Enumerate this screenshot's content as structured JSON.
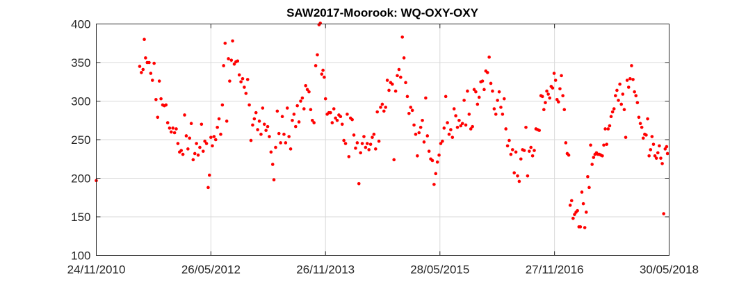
{
  "chart_data": {
    "type": "scatter",
    "title": "SAW2017-Moorook: WQ-OXY-OXY",
    "xlabel": "",
    "ylabel": "",
    "x_axis": {
      "type": "date",
      "min": "2010-11-24",
      "max": "2018-05-30",
      "ticks": [
        "24/11/2010",
        "26/05/2012",
        "26/11/2013",
        "28/05/2015",
        "27/11/2016",
        "30/05/2018"
      ]
    },
    "y_axis": {
      "min": 100,
      "max": 400,
      "ticks": [
        100,
        150,
        200,
        250,
        300,
        350,
        400
      ]
    },
    "grid": true,
    "marker_color": "#ff0000",
    "points": [
      [
        "2010-11-24",
        197
      ],
      [
        "2011-06-20",
        345
      ],
      [
        "2011-06-28",
        337
      ],
      [
        "2011-07-06",
        341
      ],
      [
        "2011-07-12",
        380
      ],
      [
        "2011-07-18",
        356
      ],
      [
        "2011-07-26",
        350
      ],
      [
        "2011-08-04",
        350
      ],
      [
        "2011-08-12",
        336
      ],
      [
        "2011-08-20",
        327
      ],
      [
        "2011-08-28",
        349
      ],
      [
        "2011-09-06",
        302
      ],
      [
        "2011-09-14",
        279
      ],
      [
        "2011-09-22",
        326
      ],
      [
        "2011-09-30",
        303
      ],
      [
        "2011-10-08",
        295
      ],
      [
        "2011-10-16",
        294
      ],
      [
        "2011-10-24",
        295
      ],
      [
        "2011-11-01",
        272
      ],
      [
        "2011-11-10",
        265
      ],
      [
        "2011-11-18",
        260
      ],
      [
        "2011-11-26",
        265
      ],
      [
        "2011-12-04",
        259
      ],
      [
        "2011-12-12",
        264
      ],
      [
        "2011-12-20",
        245
      ],
      [
        "2011-12-28",
        234
      ],
      [
        "2012-01-05",
        236
      ],
      [
        "2012-01-13",
        231
      ],
      [
        "2012-01-21",
        282
      ],
      [
        "2012-01-29",
        255
      ],
      [
        "2012-02-06",
        238
      ],
      [
        "2012-02-14",
        252
      ],
      [
        "2012-02-22",
        271
      ],
      [
        "2012-03-02",
        224
      ],
      [
        "2012-03-10",
        232
      ],
      [
        "2012-03-18",
        245
      ],
      [
        "2012-03-26",
        230
      ],
      [
        "2012-04-03",
        240
      ],
      [
        "2012-04-11",
        270
      ],
      [
        "2012-04-19",
        235
      ],
      [
        "2012-04-27",
        248
      ],
      [
        "2012-05-05",
        245
      ],
      [
        "2012-05-13",
        188
      ],
      [
        "2012-05-19",
        204
      ],
      [
        "2012-05-26",
        253
      ],
      [
        "2012-06-02",
        242
      ],
      [
        "2012-06-10",
        254
      ],
      [
        "2012-06-18",
        250
      ],
      [
        "2012-06-26",
        266
      ],
      [
        "2012-07-04",
        277
      ],
      [
        "2012-07-12",
        257
      ],
      [
        "2012-07-20",
        295
      ],
      [
        "2012-07-26",
        346
      ],
      [
        "2012-08-02",
        375
      ],
      [
        "2012-08-10",
        274
      ],
      [
        "2012-08-18",
        355
      ],
      [
        "2012-08-24",
        326
      ],
      [
        "2012-09-01",
        353
      ],
      [
        "2012-09-07",
        378
      ],
      [
        "2012-09-15",
        348
      ],
      [
        "2012-09-23",
        351
      ],
      [
        "2012-10-01",
        352
      ],
      [
        "2012-10-09",
        334
      ],
      [
        "2012-10-17",
        325
      ],
      [
        "2012-10-25",
        329
      ],
      [
        "2012-11-02",
        318
      ],
      [
        "2012-11-10",
        310
      ],
      [
        "2012-11-18",
        328
      ],
      [
        "2012-11-26",
        295
      ],
      [
        "2012-12-04",
        249
      ],
      [
        "2012-12-12",
        269
      ],
      [
        "2012-12-20",
        277
      ],
      [
        "2012-12-28",
        285
      ],
      [
        "2013-01-05",
        263
      ],
      [
        "2013-01-13",
        274
      ],
      [
        "2013-01-21",
        257
      ],
      [
        "2013-01-29",
        291
      ],
      [
        "2013-02-06",
        270
      ],
      [
        "2013-02-14",
        262
      ],
      [
        "2013-02-22",
        267
      ],
      [
        "2013-03-02",
        254
      ],
      [
        "2013-03-10",
        234
      ],
      [
        "2013-03-18",
        218
      ],
      [
        "2013-03-24",
        198
      ],
      [
        "2013-04-01",
        240
      ],
      [
        "2013-04-09",
        287
      ],
      [
        "2013-04-17",
        258
      ],
      [
        "2013-04-25",
        246
      ],
      [
        "2013-05-03",
        280
      ],
      [
        "2013-05-11",
        257
      ],
      [
        "2013-05-19",
        246
      ],
      [
        "2013-05-27",
        291
      ],
      [
        "2013-06-04",
        254
      ],
      [
        "2013-06-12",
        238
      ],
      [
        "2013-06-20",
        275
      ],
      [
        "2013-06-28",
        283
      ],
      [
        "2013-07-06",
        267
      ],
      [
        "2013-07-14",
        294
      ],
      [
        "2013-07-22",
        273
      ],
      [
        "2013-07-30",
        300
      ],
      [
        "2013-08-07",
        304
      ],
      [
        "2013-08-15",
        290
      ],
      [
        "2013-08-23",
        320
      ],
      [
        "2013-08-31",
        315
      ],
      [
        "2013-09-08",
        312
      ],
      [
        "2013-09-16",
        289
      ],
      [
        "2013-09-24",
        275
      ],
      [
        "2013-10-02",
        272
      ],
      [
        "2013-10-10",
        346
      ],
      [
        "2013-10-18",
        360
      ],
      [
        "2013-10-26",
        399
      ],
      [
        "2013-11-01",
        401
      ],
      [
        "2013-11-08",
        335
      ],
      [
        "2013-11-14",
        340
      ],
      [
        "2013-11-20",
        331
      ],
      [
        "2013-11-26",
        303
      ],
      [
        "2013-12-04",
        283
      ],
      [
        "2013-12-12",
        285
      ],
      [
        "2013-12-20",
        285
      ],
      [
        "2013-12-28",
        272
      ],
      [
        "2014-01-05",
        290
      ],
      [
        "2014-01-13",
        278
      ],
      [
        "2014-01-21",
        275
      ],
      [
        "2014-01-29",
        282
      ],
      [
        "2014-02-06",
        280
      ],
      [
        "2014-02-14",
        270
      ],
      [
        "2014-02-22",
        249
      ],
      [
        "2014-03-02",
        245
      ],
      [
        "2014-03-10",
        283
      ],
      [
        "2014-03-18",
        228
      ],
      [
        "2014-03-26",
        278
      ],
      [
        "2014-04-03",
        276
      ],
      [
        "2014-04-11",
        256
      ],
      [
        "2014-04-19",
        239
      ],
      [
        "2014-04-27",
        246
      ],
      [
        "2014-05-05",
        193
      ],
      [
        "2014-05-13",
        233
      ],
      [
        "2014-05-21",
        245
      ],
      [
        "2014-05-29",
        254
      ],
      [
        "2014-06-06",
        240
      ],
      [
        "2014-06-14",
        245
      ],
      [
        "2014-06-22",
        237
      ],
      [
        "2014-06-30",
        244
      ],
      [
        "2014-07-08",
        253
      ],
      [
        "2014-07-16",
        257
      ],
      [
        "2014-07-24",
        238
      ],
      [
        "2014-08-01",
        286
      ],
      [
        "2014-08-09",
        248
      ],
      [
        "2014-08-17",
        292
      ],
      [
        "2014-08-25",
        296
      ],
      [
        "2014-09-02",
        287
      ],
      [
        "2014-09-10",
        292
      ],
      [
        "2014-09-18",
        327
      ],
      [
        "2014-09-26",
        314
      ],
      [
        "2014-10-04",
        324
      ],
      [
        "2014-10-12",
        322
      ],
      [
        "2014-10-20",
        224
      ],
      [
        "2014-10-28",
        313
      ],
      [
        "2014-11-05",
        333
      ],
      [
        "2014-11-13",
        341
      ],
      [
        "2014-11-21",
        331
      ],
      [
        "2014-11-29",
        383
      ],
      [
        "2014-12-07",
        356
      ],
      [
        "2014-12-15",
        324
      ],
      [
        "2014-12-23",
        306
      ],
      [
        "2014-12-31",
        284
      ],
      [
        "2015-01-08",
        292
      ],
      [
        "2015-01-16",
        288
      ],
      [
        "2015-01-24",
        269
      ],
      [
        "2015-02-01",
        257
      ],
      [
        "2015-02-09",
        229
      ],
      [
        "2015-02-17",
        259
      ],
      [
        "2015-02-25",
        266
      ],
      [
        "2015-03-05",
        275
      ],
      [
        "2015-03-13",
        247
      ],
      [
        "2015-03-21",
        304
      ],
      [
        "2015-03-29",
        255
      ],
      [
        "2015-04-06",
        235
      ],
      [
        "2015-04-14",
        225
      ],
      [
        "2015-04-22",
        223
      ],
      [
        "2015-04-30",
        192
      ],
      [
        "2015-05-08",
        206
      ],
      [
        "2015-05-16",
        221
      ],
      [
        "2015-05-24",
        230
      ],
      [
        "2015-06-01",
        245
      ],
      [
        "2015-06-09",
        248
      ],
      [
        "2015-06-17",
        265
      ],
      [
        "2015-06-25",
        306
      ],
      [
        "2015-07-03",
        272
      ],
      [
        "2015-07-11",
        257
      ],
      [
        "2015-07-19",
        263
      ],
      [
        "2015-07-27",
        253
      ],
      [
        "2015-08-04",
        290
      ],
      [
        "2015-08-12",
        281
      ],
      [
        "2015-08-20",
        266
      ],
      [
        "2015-08-28",
        275
      ],
      [
        "2015-09-05",
        268
      ],
      [
        "2015-09-13",
        271
      ],
      [
        "2015-09-21",
        301
      ],
      [
        "2015-09-29",
        269
      ],
      [
        "2015-10-07",
        313
      ],
      [
        "2015-10-15",
        283
      ],
      [
        "2015-10-23",
        264
      ],
      [
        "2015-10-31",
        267
      ],
      [
        "2015-11-08",
        315
      ],
      [
        "2015-11-16",
        312
      ],
      [
        "2015-11-24",
        296
      ],
      [
        "2015-12-02",
        305
      ],
      [
        "2015-12-10",
        325
      ],
      [
        "2015-12-18",
        326
      ],
      [
        "2015-12-26",
        315
      ],
      [
        "2016-01-03",
        339
      ],
      [
        "2016-01-11",
        337
      ],
      [
        "2016-01-19",
        357
      ],
      [
        "2016-01-27",
        323
      ],
      [
        "2016-02-04",
        313
      ],
      [
        "2016-02-12",
        290
      ],
      [
        "2016-02-20",
        283
      ],
      [
        "2016-02-28",
        301
      ],
      [
        "2016-03-07",
        312
      ],
      [
        "2016-03-15",
        292
      ],
      [
        "2016-03-23",
        283
      ],
      [
        "2016-03-31",
        303
      ],
      [
        "2016-04-08",
        264
      ],
      [
        "2016-04-16",
        242
      ],
      [
        "2016-04-24",
        249
      ],
      [
        "2016-05-02",
        231
      ],
      [
        "2016-05-10",
        237
      ],
      [
        "2016-05-18",
        207
      ],
      [
        "2016-05-26",
        234
      ],
      [
        "2016-06-03",
        203
      ],
      [
        "2016-06-11",
        196
      ],
      [
        "2016-06-19",
        225
      ],
      [
        "2016-06-27",
        237
      ],
      [
        "2016-07-05",
        236
      ],
      [
        "2016-07-13",
        266
      ],
      [
        "2016-07-21",
        203
      ],
      [
        "2016-07-29",
        235
      ],
      [
        "2016-08-06",
        240
      ],
      [
        "2016-08-14",
        229
      ],
      [
        "2016-08-22",
        236
      ],
      [
        "2016-08-30",
        264
      ],
      [
        "2016-09-07",
        263
      ],
      [
        "2016-09-15",
        262
      ],
      [
        "2016-09-23",
        307
      ],
      [
        "2016-09-30",
        306
      ],
      [
        "2016-10-07",
        289
      ],
      [
        "2016-10-14",
        298
      ],
      [
        "2016-10-21",
        313
      ],
      [
        "2016-10-28",
        309
      ],
      [
        "2016-11-04",
        304
      ],
      [
        "2016-11-11",
        319
      ],
      [
        "2016-11-18",
        317
      ],
      [
        "2016-11-25",
        336
      ],
      [
        "2016-12-02",
        327
      ],
      [
        "2016-12-09",
        302
      ],
      [
        "2016-12-16",
        299
      ],
      [
        "2016-12-23",
        316
      ],
      [
        "2016-12-30",
        333
      ],
      [
        "2017-01-06",
        307
      ],
      [
        "2017-01-13",
        289
      ],
      [
        "2017-01-20",
        246
      ],
      [
        "2017-01-27",
        232
      ],
      [
        "2017-02-03",
        230
      ],
      [
        "2017-02-10",
        165
      ],
      [
        "2017-02-17",
        171
      ],
      [
        "2017-02-24",
        148
      ],
      [
        "2017-03-03",
        153
      ],
      [
        "2017-03-10",
        156
      ],
      [
        "2017-03-17",
        158
      ],
      [
        "2017-03-24",
        137
      ],
      [
        "2017-03-31",
        137
      ],
      [
        "2017-04-07",
        182
      ],
      [
        "2017-04-14",
        167
      ],
      [
        "2017-04-21",
        136
      ],
      [
        "2017-04-28",
        156
      ],
      [
        "2017-05-05",
        202
      ],
      [
        "2017-05-12",
        188
      ],
      [
        "2017-05-19",
        243
      ],
      [
        "2017-05-26",
        218
      ],
      [
        "2017-06-02",
        227
      ],
      [
        "2017-06-09",
        231
      ],
      [
        "2017-06-16",
        233
      ],
      [
        "2017-06-23",
        231
      ],
      [
        "2017-06-30",
        231
      ],
      [
        "2017-07-07",
        230
      ],
      [
        "2017-07-14",
        229
      ],
      [
        "2017-07-21",
        243
      ],
      [
        "2017-07-28",
        264
      ],
      [
        "2017-08-04",
        244
      ],
      [
        "2017-08-11",
        264
      ],
      [
        "2017-08-18",
        268
      ],
      [
        "2017-08-25",
        280
      ],
      [
        "2017-09-01",
        286
      ],
      [
        "2017-09-08",
        290
      ],
      [
        "2017-09-15",
        307
      ],
      [
        "2017-09-22",
        314
      ],
      [
        "2017-09-29",
        301
      ],
      [
        "2017-10-06",
        322
      ],
      [
        "2017-10-13",
        296
      ],
      [
        "2017-10-20",
        309
      ],
      [
        "2017-10-27",
        289
      ],
      [
        "2017-11-03",
        253
      ],
      [
        "2017-11-10",
        327
      ],
      [
        "2017-11-17",
        318
      ],
      [
        "2017-11-24",
        329
      ],
      [
        "2017-12-01",
        346
      ],
      [
        "2017-12-08",
        328
      ],
      [
        "2017-12-15",
        312
      ],
      [
        "2017-12-22",
        307
      ],
      [
        "2017-12-29",
        298
      ],
      [
        "2018-01-05",
        279
      ],
      [
        "2018-01-12",
        271
      ],
      [
        "2018-01-19",
        266
      ],
      [
        "2018-01-26",
        252
      ],
      [
        "2018-02-02",
        257
      ],
      [
        "2018-02-09",
        256
      ],
      [
        "2018-02-16",
        277
      ],
      [
        "2018-02-23",
        229
      ],
      [
        "2018-03-02",
        237
      ],
      [
        "2018-03-09",
        254
      ],
      [
        "2018-03-16",
        244
      ],
      [
        "2018-03-23",
        229
      ],
      [
        "2018-03-30",
        226
      ],
      [
        "2018-04-06",
        233
      ],
      [
        "2018-04-13",
        242
      ],
      [
        "2018-04-20",
        226
      ],
      [
        "2018-04-27",
        219
      ],
      [
        "2018-05-04",
        154
      ],
      [
        "2018-05-11",
        238
      ],
      [
        "2018-05-18",
        241
      ],
      [
        "2018-05-22",
        232
      ]
    ]
  }
}
